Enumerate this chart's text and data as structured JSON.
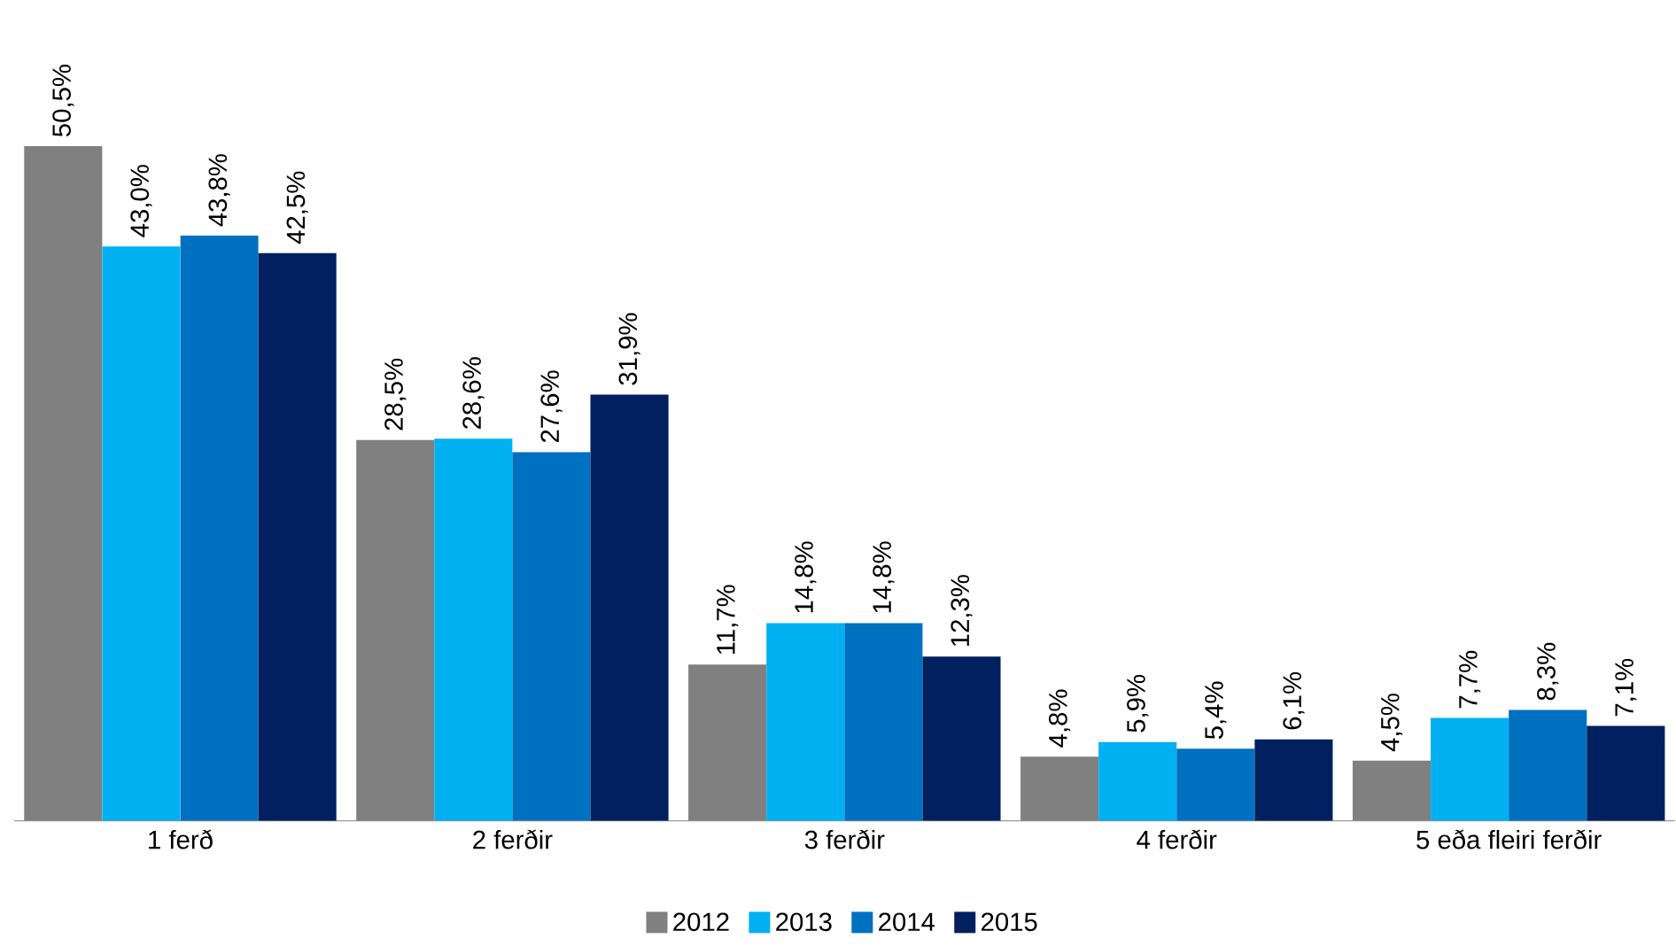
{
  "chart_data": {
    "type": "bar",
    "categories": [
      "1 ferð",
      "2 ferðir",
      "3 ferðir",
      "4 ferðir",
      "5 eða fleiri ferðir"
    ],
    "series": [
      {
        "name": "2012",
        "color": "#808080",
        "values": [
          50.5,
          28.5,
          11.7,
          4.8,
          4.5
        ],
        "value_labels": [
          "50,5%",
          "28,5%",
          "11,7%",
          "4,8%",
          "4,5%"
        ]
      },
      {
        "name": "2013",
        "color": "#00b0f0",
        "values": [
          43.0,
          28.6,
          14.8,
          5.9,
          7.7
        ],
        "value_labels": [
          "43,0%",
          "28,6%",
          "14,8%",
          "5,9%",
          "7,7%"
        ]
      },
      {
        "name": "2014",
        "color": "#0070c0",
        "values": [
          43.8,
          27.6,
          14.8,
          5.4,
          8.3
        ],
        "value_labels": [
          "43,8%",
          "27,6%",
          "14,8%",
          "5,4%",
          "8,3%"
        ]
      },
      {
        "name": "2015",
        "color": "#002060",
        "values": [
          42.5,
          31.9,
          12.3,
          6.1,
          7.1
        ],
        "value_labels": [
          "42,5%",
          "31,9%",
          "12,3%",
          "6,1%",
          "7,1%"
        ]
      }
    ],
    "legend": "bottom"
  }
}
